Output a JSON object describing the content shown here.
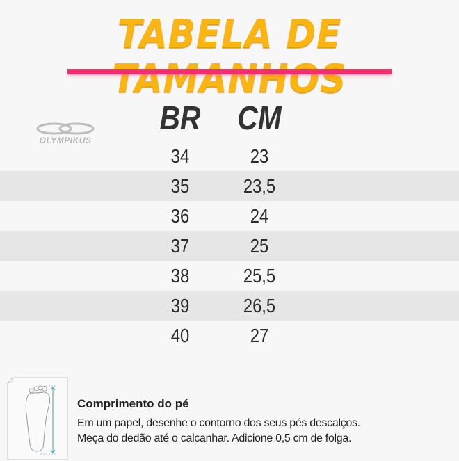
{
  "title": "TABELA DE TAMANHOS",
  "brand": {
    "name": "OLYMPIKUS",
    "icon": "olympikus-logo"
  },
  "colors": {
    "title": "#fbb512",
    "accent_line": "#f0306e",
    "stripe": "#e6e6e6"
  },
  "table": {
    "headers": [
      "BR",
      "CM"
    ],
    "rows": [
      [
        "34",
        "23"
      ],
      [
        "35",
        "23,5"
      ],
      [
        "36",
        "24"
      ],
      [
        "37",
        "25"
      ],
      [
        "38",
        "25,5"
      ],
      [
        "39",
        "26,5"
      ],
      [
        "40",
        "27"
      ]
    ]
  },
  "footer": {
    "icon": "foot-measure-icon",
    "title": "Comprimento do pé",
    "lines": [
      "Em um papel, desenhe o contorno dos seus pés descalços.",
      "Meça do dedão até o calcanhar. Adicione 0,5 cm de folga."
    ]
  }
}
